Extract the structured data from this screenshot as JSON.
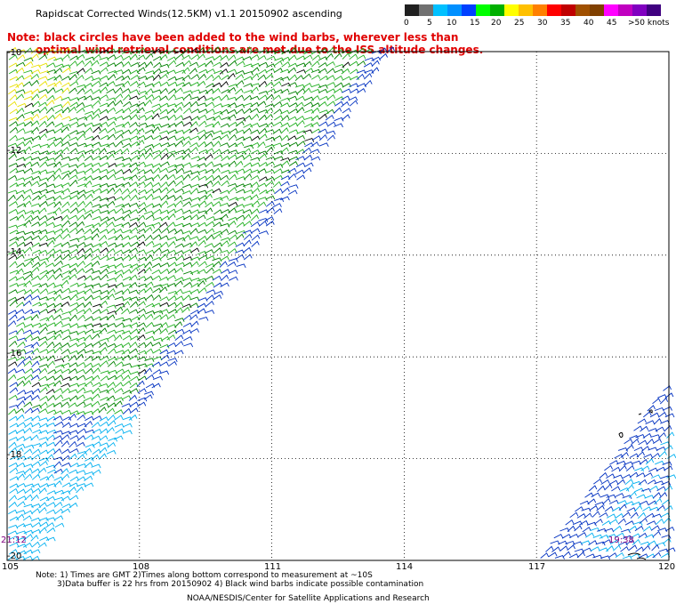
{
  "title": "Rapidscat Corrected Winds(12.5KM) v1.1 20150902 ascending",
  "note_line1": "Note: black circles have been added to the wind barbs, wherever less than",
  "note_line2": "optimal wind retrieval conditions are met due to the ISS altitude changes.",
  "colorbar": {
    "colors": [
      "#202020",
      "#707070",
      "#00c0ff",
      "#0090ff",
      "#0040ff",
      "#00ff00",
      "#00b000",
      "#ffff00",
      "#ffc000",
      "#ff8000",
      "#ff0000",
      "#c00000",
      "#a05000",
      "#804000",
      "#ff00ff",
      "#c000c0",
      "#8000c0",
      "#400080"
    ],
    "labels": [
      "0",
      "5",
      "10",
      "15",
      "20",
      "25",
      "30",
      "35",
      "40",
      "45",
      ">50 knots"
    ]
  },
  "lat_labels": [
    "-10",
    "-12",
    "-14",
    "-16",
    "-18",
    "-20"
  ],
  "lon_labels": [
    "105",
    "108",
    "111",
    "114",
    "117",
    "120"
  ],
  "time_labels": [
    "21:12",
    "19:38"
  ],
  "footer": {
    "line1": "Note: 1) Times are GMT 2)Times along bottom correspond to measurement at ~10S",
    "line2": "3)Data buffer is 22 hrs from 20150902 4) Black wind barbs indicate possible contamination",
    "line3": "NOAA/NESDIS/Center for Satellite Applications and Research"
  },
  "map": {
    "lon_range": [
      105,
      120
    ],
    "lat_range": [
      -20,
      -10
    ],
    "wind_colors": {
      "light_blue": "#00b0f0",
      "blue": "#0030c0",
      "green": "#22b022",
      "dark_green": "#008000",
      "yellow": "#e8e000",
      "black": "#000000"
    }
  }
}
